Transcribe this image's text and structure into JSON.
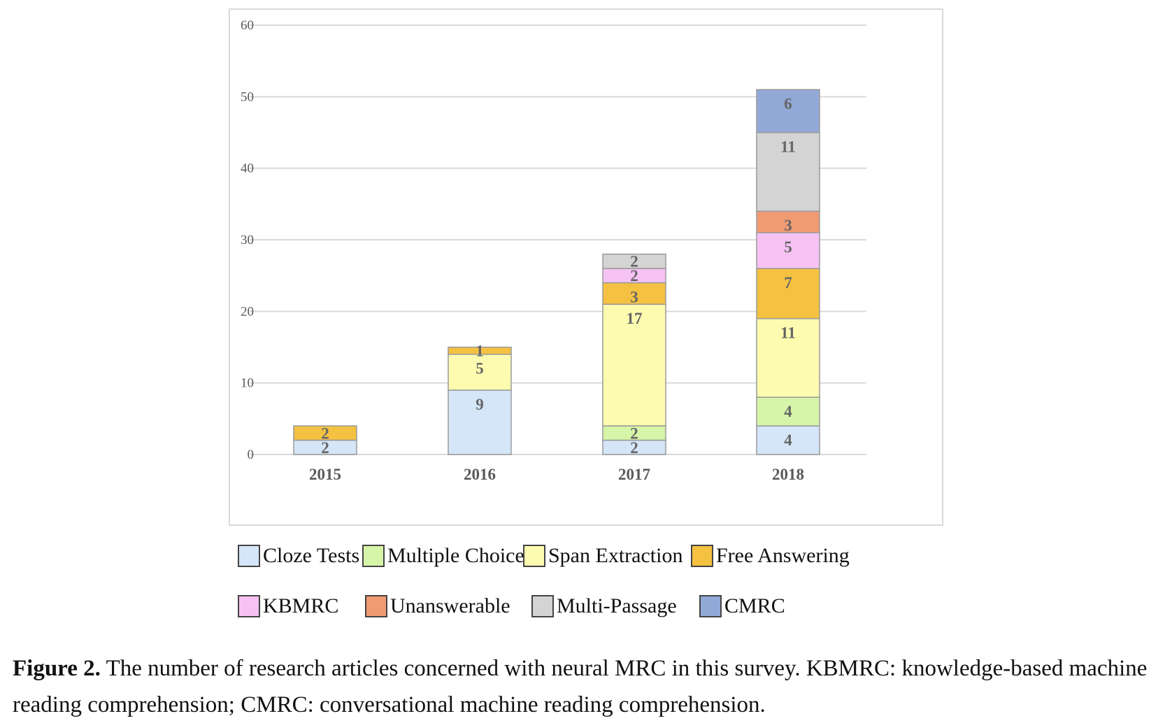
{
  "chart_data": {
    "type": "bar",
    "stacked": true,
    "categories": [
      "2015",
      "2016",
      "2017",
      "2018"
    ],
    "ylim": [
      0,
      60
    ],
    "yticks": [
      0,
      10,
      20,
      30,
      40,
      50,
      60
    ],
    "grid": true,
    "legend_position": "bottom",
    "series": [
      {
        "name": "Cloze Tests",
        "color": "#d4e6f8",
        "values": [
          2,
          9,
          2,
          4
        ]
      },
      {
        "name": "Multiple Choice",
        "color": "#d7f5a8",
        "values": [
          0,
          0,
          2,
          4
        ]
      },
      {
        "name": "Span Extraction",
        "color": "#fdfbb0",
        "values": [
          0,
          5,
          17,
          11
        ]
      },
      {
        "name": "Free Answering",
        "color": "#f4c141",
        "values": [
          2,
          1,
          3,
          7
        ]
      },
      {
        "name": "KBMRC",
        "color": "#f6c2f4",
        "values": [
          0,
          0,
          2,
          5
        ]
      },
      {
        "name": "Unanswerable",
        "color": "#f19b72",
        "values": [
          0,
          0,
          0,
          3
        ]
      },
      {
        "name": "Multi-Passage",
        "color": "#d4d4d4",
        "values": [
          0,
          0,
          2,
          11
        ]
      },
      {
        "name": "CMRC",
        "color": "#92a9d8",
        "values": [
          0,
          0,
          0,
          6
        ]
      }
    ]
  },
  "caption": {
    "label": "Figure 2.",
    "text": " The number of research articles concerned with neural MRC in this survey. KBMRC: knowledge-based machine reading comprehension; CMRC: conversational machine reading comprehension."
  }
}
